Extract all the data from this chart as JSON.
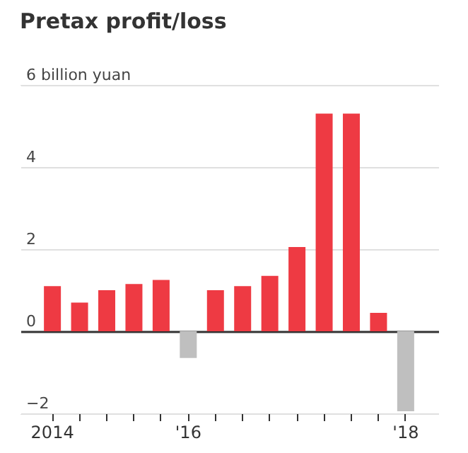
{
  "chart_data": {
    "type": "bar",
    "title": "Pretax profit/loss",
    "categories": [
      "2014",
      null,
      null,
      null,
      null,
      "'16",
      null,
      null,
      null,
      null,
      null,
      null,
      null,
      "'18"
    ],
    "values": [
      1.1,
      0.7,
      1.0,
      1.15,
      1.25,
      -0.65,
      1.0,
      1.1,
      1.35,
      2.05,
      5.3,
      5.3,
      0.45,
      -1.95
    ],
    "colors": [
      "#ee3a43",
      "#ee3a43",
      "#ee3a43",
      "#ee3a43",
      "#ee3a43",
      "#bfbfbf",
      "#ee3a43",
      "#ee3a43",
      "#ee3a43",
      "#ee3a43",
      "#ee3a43",
      "#ee3a43",
      "#ee3a43",
      "#bfbfbf"
    ],
    "ylim": [
      -2,
      6
    ],
    "yticks": [
      -2,
      0,
      2,
      4,
      {
        "value": 6,
        "label": "6 billion yuan"
      }
    ],
    "grid": "y"
  }
}
